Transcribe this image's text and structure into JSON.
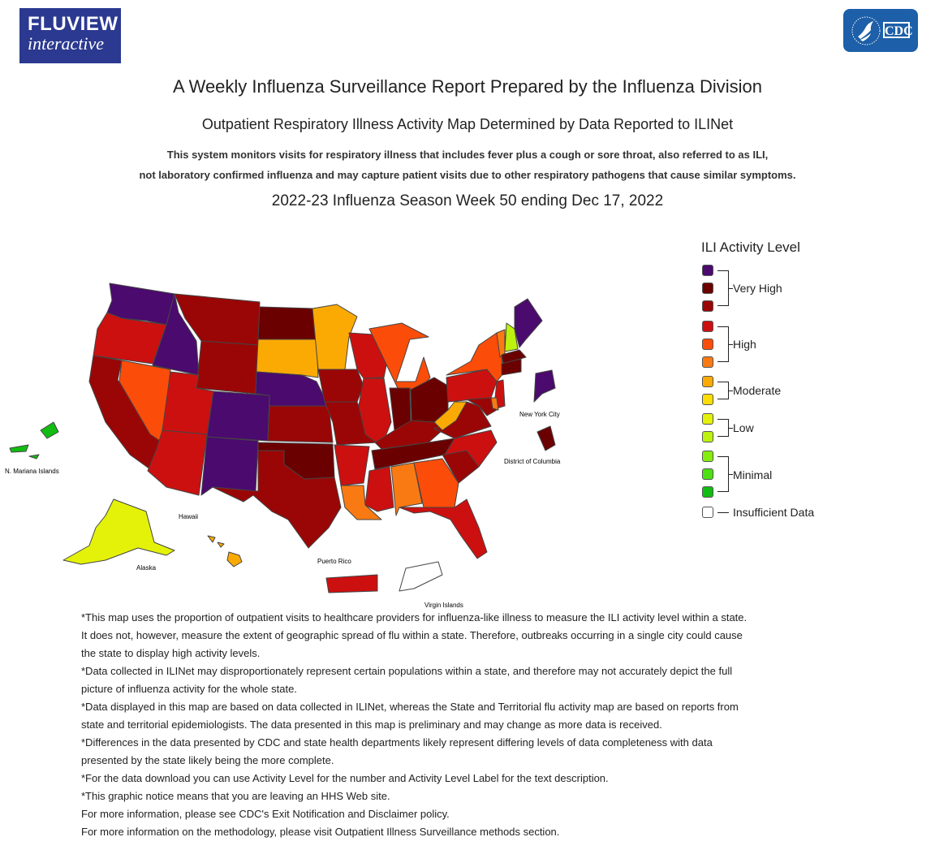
{
  "header": {
    "fluview_logo": {
      "line1": "FLUVIEW",
      "line2": "interactive"
    },
    "cdc_logo": {
      "wordmark": "CDC"
    }
  },
  "title": "A Weekly Influenza Surveillance Report Prepared by the Influenza Division",
  "subtitle": "Outpatient Respiratory Illness Activity Map Determined by Data Reported to ILINet",
  "description": [
    "This system monitors visits for respiratory illness that includes fever plus a cough or sore throat, also referred to as ILI,",
    "not laboratory confirmed influenza and may capture patient visits due to other respiratory pathogens that cause similar symptoms."
  ],
  "season_title": "2022-23 Influenza Season Week 50 ending Dec 17, 2022",
  "map": {
    "place_labels": {
      "mariana": "N. Mariana Islands",
      "hawaii": "Hawaii",
      "alaska": "Alaska",
      "puerto_rico": "Puerto Rico",
      "virgin_islands": "Virgin Islands",
      "nyc": "New York City",
      "dc": "District of Columbia"
    },
    "level_colors": {
      "13": "#4b0a6e",
      "12": "#6b0000",
      "11": "#9a0606",
      "10": "#cc1010",
      "9": "#fb4d09",
      "8": "#f97a13",
      "7": "#fbaa04",
      "6": "#fcdc05",
      "5": "#e4f20a",
      "4": "#bdf20c",
      "3": "#85ed0e",
      "2": "#4ce012",
      "1": "#12bc12",
      "0": "#ffffff"
    },
    "state_levels": {
      "WA": 13,
      "OR": 10,
      "CA": 11,
      "NV": 9,
      "ID": 13,
      "MT": 11,
      "WY": 11,
      "UT": 10,
      "AZ": 10,
      "CO": 13,
      "NM": 13,
      "ND": 12,
      "SD": 7,
      "NE": 13,
      "KS": 11,
      "OK": 12,
      "TX": 11,
      "MN": 7,
      "IA": 11,
      "MO": 11,
      "AR": 10,
      "LA": 8,
      "WI": 10,
      "IL": 10,
      "MI": 9,
      "IN": 12,
      "OH": 12,
      "KY": 11,
      "TN": 12,
      "MS": 10,
      "AL": 8,
      "GA": 9,
      "FL": 10,
      "SC": 11,
      "NC": 10,
      "VA": 11,
      "WV": 7,
      "PA": 10,
      "NY": 9,
      "NJ": 10,
      "DE": 8,
      "MD": 11,
      "NJ2": 10,
      "ME": 13,
      "VT": 8,
      "NH": 4,
      "MA": 12,
      "CT": 12,
      "AK": 5,
      "HI": 7,
      "PR": 10,
      "VI": 0,
      "MP": 1,
      "NYC": 13,
      "DC": 12
    }
  },
  "legend": {
    "title": "ILI Activity Level",
    "groups": [
      {
        "label": "Very High",
        "levels": [
          13,
          12,
          11
        ]
      },
      {
        "label": "High",
        "levels": [
          10,
          9,
          8
        ]
      },
      {
        "label": "Moderate",
        "levels": [
          7,
          6
        ]
      },
      {
        "label": "Low",
        "levels": [
          5,
          4
        ]
      },
      {
        "label": "Minimal",
        "levels": [
          3,
          2,
          1
        ]
      }
    ],
    "insufficient": {
      "label": "Insufficient Data",
      "level": 0
    }
  },
  "notes": [
    "*This map uses the proportion of outpatient visits to healthcare providers for influenza-like illness to measure the ILI activity level within a state.",
    "It does not, however, measure the extent of geographic spread of flu within a state. Therefore, outbreaks occurring in a single city could cause",
    "the state to display high activity levels.",
    "*Data collected in ILINet may disproportionately represent certain populations within a state, and therefore may not accurately depict the full",
    "picture of influenza activity for the whole state.",
    "*Data displayed in this map are based on data collected in ILINet, whereas the State and Territorial flu activity map are based on reports from",
    "state and territorial epidemiologists. The data presented in this map is preliminary and may change as more data is received.",
    "*Differences in the data presented by CDC and state health departments likely represent differing levels of data completeness with data",
    "presented by the state likely being the more complete.",
    "*For the data download you can use Activity Level for the number and Activity Level Label for the text description.",
    "*This graphic notice means that you are leaving an HHS Web site.",
    "For more information, please see CDC's Exit Notification and Disclaimer policy.",
    "For more information on the methodology, please visit Outpatient Illness Surveillance methods section."
  ]
}
